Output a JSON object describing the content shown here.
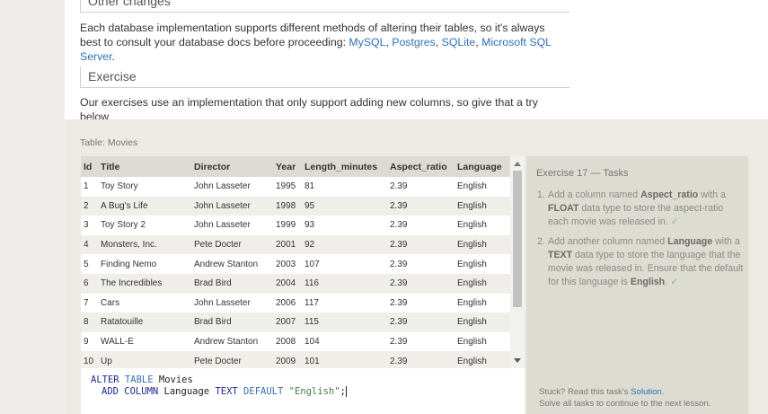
{
  "lesson": {
    "other_heading": "Other changes",
    "other_text": "Each database implementation supports different methods of altering their tables, so it's always best to consult your database docs before proceeding: ",
    "links": [
      "MySQL",
      "Postgres",
      "SQLite",
      "Microsoft SQL Server"
    ],
    "link_sep": ", ",
    "other_end": ".",
    "exercise_heading": "Exercise",
    "exercise_text": "Our exercises use an implementation that only support adding new columns, so give that a try below."
  },
  "table": {
    "caption": "Table: Movies",
    "columns": [
      "Id",
      "Title",
      "Director",
      "Year",
      "Length_minutes",
      "Aspect_ratio",
      "Language"
    ],
    "rows": [
      [
        "1",
        "Toy Story",
        "John Lasseter",
        "1995",
        "81",
        "2.39",
        "English"
      ],
      [
        "2",
        "A Bug's Life",
        "John Lasseter",
        "1998",
        "95",
        "2.39",
        "English"
      ],
      [
        "3",
        "Toy Story 2",
        "John Lasseter",
        "1999",
        "93",
        "2.39",
        "English"
      ],
      [
        "4",
        "Monsters, Inc.",
        "Pete Docter",
        "2001",
        "92",
        "2.39",
        "English"
      ],
      [
        "5",
        "Finding Nemo",
        "Andrew Stanton",
        "2003",
        "107",
        "2.39",
        "English"
      ],
      [
        "6",
        "The Incredibles",
        "Brad Bird",
        "2004",
        "116",
        "2.39",
        "English"
      ],
      [
        "7",
        "Cars",
        "John Lasseter",
        "2006",
        "117",
        "2.39",
        "English"
      ],
      [
        "8",
        "Ratatouille",
        "Brad Bird",
        "2007",
        "115",
        "2.39",
        "English"
      ],
      [
        "9",
        "WALL-E",
        "Andrew Stanton",
        "2008",
        "104",
        "2.39",
        "English"
      ],
      [
        "10",
        "Up",
        "Pete Docter",
        "2009",
        "101",
        "2.39",
        "English"
      ]
    ]
  },
  "editor": {
    "line1": {
      "kw1": "ALTER",
      "kw2": "TABLE",
      "rest": " Movies"
    },
    "line2": {
      "kw1": "ADD COLUMN",
      "mid": " Language ",
      "kw2": "TEXT",
      "kw3": " DEFAULT ",
      "str": "\"English\"",
      "end": ";"
    }
  },
  "tasks": {
    "title": "Exercise 17 — Tasks",
    "items": [
      {
        "num": "1.",
        "pre": "Add a column named ",
        "bold1": "Aspect_ratio",
        "mid": " with a ",
        "bold2": "FLOAT",
        "post": " data type to store the aspect-ratio each movie was released in.",
        "check": "✓"
      },
      {
        "num": "2.",
        "pre": "Add another column named ",
        "bold1": "Language",
        "mid": " with a ",
        "bold2": "TEXT",
        "post": " data type to store the language that the movie was released in. Ensure that the default for this language is ",
        "bold3": "English",
        "post2": ".",
        "check": "✓"
      }
    ],
    "footer_pre": "Stuck? Read this task's ",
    "footer_link": "Solution",
    "footer_post": ".",
    "footer_line2": "Solve all tasks to continue to the next lesson."
  },
  "colors": {
    "link": "#2f6fb6",
    "check": "#7fc08a",
    "panel": "#dcdcd2"
  }
}
